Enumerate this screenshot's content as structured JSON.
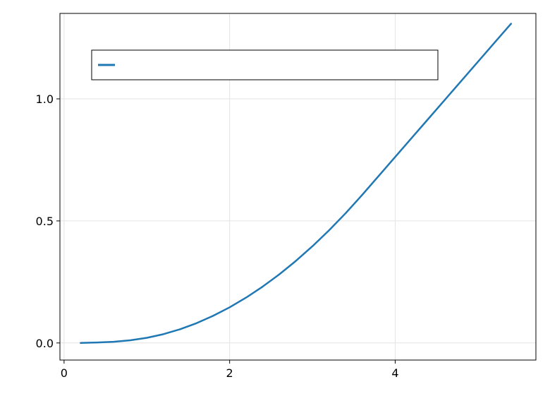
{
  "chart_data": {
    "type": "line",
    "title": "",
    "xlabel": "",
    "ylabel": "",
    "xlim": [
      -0.05,
      5.7
    ],
    "ylim": [
      -0.07,
      1.35
    ],
    "x_ticks": [
      0,
      2,
      4
    ],
    "x_tick_labels": [
      "0",
      "2",
      "4"
    ],
    "y_ticks": [
      0.0,
      0.5,
      1.0
    ],
    "y_tick_labels": [
      "0.0",
      "0.5",
      "1.0"
    ],
    "grid": true,
    "legend": {
      "placement": "top-left",
      "entries": [
        ""
      ]
    },
    "series": [
      {
        "color": "#1f77b4",
        "x": [
          0.2,
          0.4,
          0.6,
          0.8,
          1.0,
          1.2,
          1.4,
          1.6,
          1.8,
          2.0,
          2.2,
          2.4,
          2.6,
          2.8,
          3.0,
          3.2,
          3.4,
          3.6,
          3.8,
          4.0,
          4.2,
          4.4,
          4.6,
          4.8,
          5.0,
          5.2,
          5.4
        ],
        "y": [
          0.0,
          0.002,
          0.005,
          0.011,
          0.021,
          0.036,
          0.056,
          0.081,
          0.111,
          0.146,
          0.186,
          0.231,
          0.281,
          0.336,
          0.396,
          0.461,
          0.531,
          0.606,
          0.684,
          0.762,
          0.84,
          0.918,
          0.996,
          1.074,
          1.152,
          1.23,
          1.308
        ]
      }
    ]
  }
}
